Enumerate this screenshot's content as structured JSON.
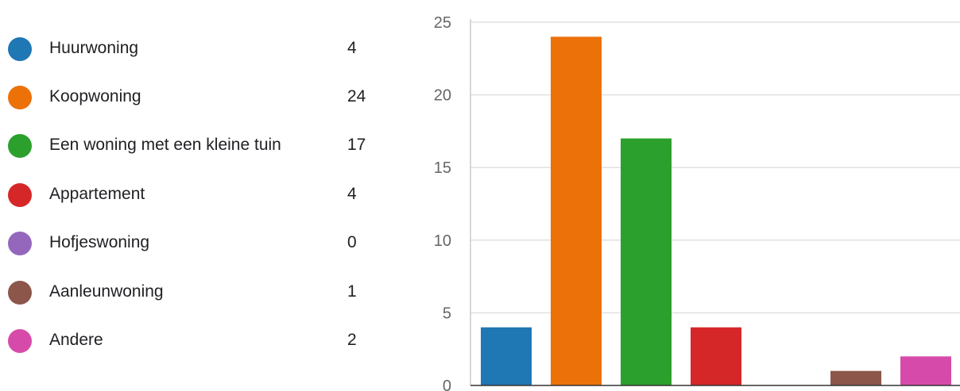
{
  "chart_data": {
    "type": "bar",
    "categories": [
      "Huurwoning",
      "Koopwoning",
      "Een woning met een kleine tuin",
      "Appartement",
      "Hofjeswoning",
      "Aanleunwoning",
      "Andere"
    ],
    "values": [
      4,
      24,
      17,
      4,
      0,
      1,
      2
    ],
    "colors": [
      "#1f77b4",
      "#ec7108",
      "#2ca02c",
      "#d62728",
      "#9467bd",
      "#8c564b",
      "#d64baa"
    ],
    "yticks": [
      0,
      5,
      10,
      15,
      20,
      25
    ],
    "ylim": [
      0,
      25
    ],
    "grid": true,
    "legend_position": "left"
  },
  "legend": {
    "items": [
      {
        "label": "Huurwoning",
        "count": "4",
        "color": "#1f77b4"
      },
      {
        "label": "Koopwoning",
        "count": "24",
        "color": "#ec7108"
      },
      {
        "label": "Een woning met een kleine tuin",
        "count": "17",
        "color": "#2ca02c"
      },
      {
        "label": "Appartement",
        "count": "4",
        "color": "#d62728"
      },
      {
        "label": "Hofjeswoning",
        "count": "0",
        "color": "#9467bd"
      },
      {
        "label": "Aanleunwoning",
        "count": "1",
        "color": "#8c564b"
      },
      {
        "label": "Andere",
        "count": "2",
        "color": "#d64baa"
      }
    ]
  }
}
